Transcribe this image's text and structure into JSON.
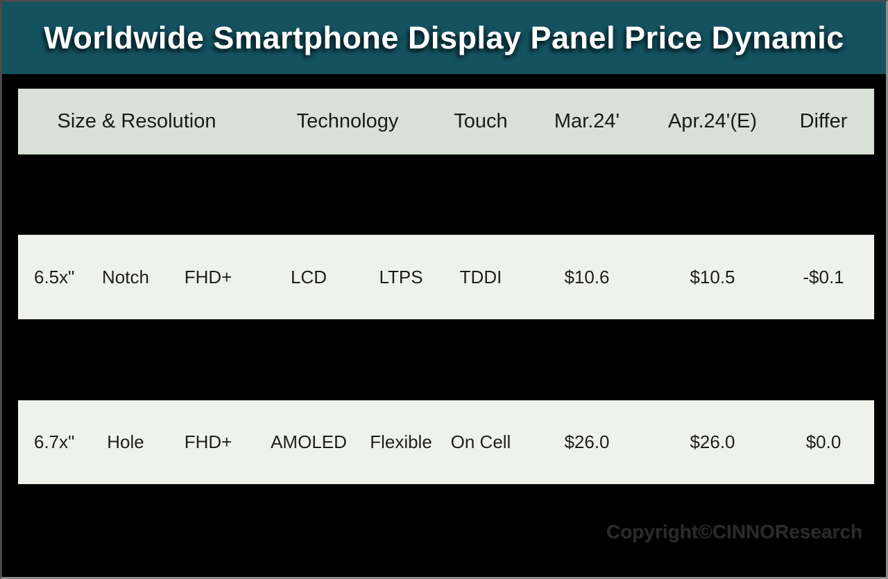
{
  "title": "Worldwide Smartphone Display Panel Price Dynamic",
  "copyright": "Copyright©CINNOResearch",
  "colors": {
    "title_band_bg": "#145260",
    "title_text": "#ffffff",
    "table_header_bg": "#d9e1d6",
    "row_bg": "#eff2ec",
    "body_text": "#1e1e1e",
    "page_bg": "#000000",
    "copyright_text": "#2a2a2a",
    "frame_border": "#8d8d8d"
  },
  "table": {
    "headers": [
      {
        "label": "Size & Resolution"
      },
      {
        "label": "Technology"
      },
      {
        "label": "Touch"
      },
      {
        "label": "Mar.24'"
      },
      {
        "label": "Apr.24'(E)"
      },
      {
        "label": "Differ"
      }
    ],
    "rows": [
      {
        "cells": [
          "6.5x\"",
          "Notch",
          "FHD+",
          "LCD",
          "LTPS",
          "TDDI",
          "$10.6",
          "$10.5",
          "-$0.1"
        ]
      },
      {
        "cells": [
          "6.7x\"",
          "Hole",
          "FHD+",
          "AMOLED",
          "Flexible",
          "On Cell",
          "$26.0",
          "$26.0",
          "$0.0"
        ]
      }
    ]
  }
}
